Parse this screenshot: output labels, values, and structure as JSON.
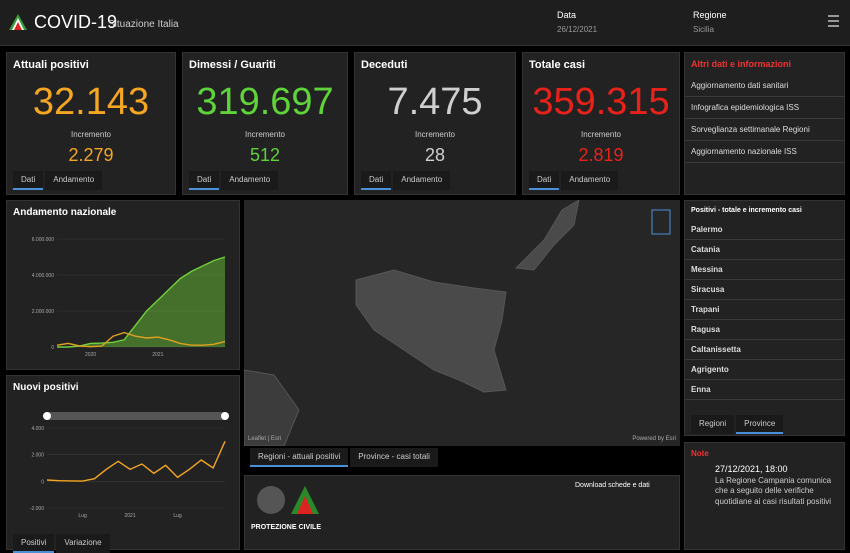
{
  "header": {
    "title": "COVID-19",
    "subtitle": "Situazione Italia",
    "date_label": "Data",
    "date": "26/12/2021",
    "region_label": "Regione",
    "region": "Sicilia"
  },
  "kpis": [
    {
      "title": "Attuali positivi",
      "value": "32.143",
      "increment_label": "Incremento",
      "increment": "2.279",
      "color": "#f5a623"
    },
    {
      "title": "Dimessi / Guariti",
      "value": "319.697",
      "increment_label": "Incremento",
      "increment": "512",
      "color": "#5fd33a"
    },
    {
      "title": "Deceduti",
      "value": "7.475",
      "increment_label": "Incremento",
      "increment": "28",
      "color": "#cfcfcf"
    },
    {
      "title": "Totale casi",
      "value": "359.315",
      "increment_label": "Incremento",
      "increment": "2.819",
      "color": "#e8221b"
    }
  ],
  "kpi_tabs": [
    "Dati",
    "Andamento"
  ],
  "links": {
    "title": "Altri dati e informazioni",
    "items": [
      "Aggiornamento dati sanitari",
      "Infografica epidemiologica ISS",
      "Sorveglianza settimanale Regioni",
      "Aggiornamento nazionale ISS"
    ]
  },
  "chart_national": {
    "type": "line",
    "title": "Andamento nazionale",
    "categories": [
      null,
      null,
      null,
      "2020",
      null,
      null,
      null,
      null,
      null,
      "2021",
      null,
      null,
      null,
      null,
      null,
      null
    ],
    "series": [
      {
        "color": "#6fd13a",
        "values": [
          0,
          0,
          50000,
          200000,
          220000,
          260000,
          400000,
          1200000,
          2000000,
          2600000,
          3200000,
          3800000,
          4200000,
          4500000,
          4800000,
          5000000
        ]
      },
      {
        "color": "#e0a020",
        "values": [
          100000,
          200000,
          60000,
          20000,
          50000,
          600000,
          800000,
          600000,
          500000,
          550000,
          400000,
          200000,
          100000,
          100000,
          150000,
          300000
        ]
      }
    ],
    "ylim": [
      0,
      6000000
    ],
    "yticks": [
      0,
      {
        "value": 2000000,
        "label": "2.000.000"
      },
      {
        "value": 4000000,
        "label": "4.000.000"
      },
      {
        "value": 6000000,
        "label": "6.000.000"
      }
    ]
  },
  "chart_new": {
    "type": "line",
    "title": "Nuovi positivi",
    "categories": [
      null,
      null,
      null,
      "Lug",
      null,
      null,
      null,
      "2021",
      null,
      null,
      null,
      "Lug",
      null,
      null,
      null,
      null
    ],
    "series": [
      {
        "color": "#f5a623",
        "values": [
          100,
          50,
          30,
          20,
          200,
          900,
          1500,
          900,
          1300,
          600,
          1200,
          300,
          900,
          1600,
          1000,
          3000
        ]
      }
    ],
    "ylim": [
      -2000,
      4000
    ],
    "yticks": [
      {
        "value": -2000,
        "label": "-2.000"
      },
      0,
      {
        "value": 2000,
        "label": "2.000"
      },
      {
        "value": 4000,
        "label": "4.000"
      }
    ],
    "tabs": [
      "Positivi",
      "Variazione"
    ]
  },
  "map": {
    "attribution_left": "Leaflet | Esri",
    "attribution_right": "Powered by Esri",
    "tabs": [
      "Regioni - attuali positivi",
      "Province - casi totali"
    ]
  },
  "provinces": {
    "title": "Positivi - totale e incremento casi",
    "items": [
      "Palermo",
      "Catania",
      "Messina",
      "Siracusa",
      "Trapani",
      "Ragusa",
      "Caltanissetta",
      "Agrigento",
      "Enna"
    ],
    "tabs": [
      "Regioni",
      "Province"
    ]
  },
  "note": {
    "title": "Note",
    "date": "27/12/2021, 18:00",
    "text": "La Regione Campania comunica che a seguito delle verifiche quotidiane ai casi risultati positivi"
  },
  "footer": {
    "org": "PROTEZIONE CIVILE",
    "downloads": "Download schede e dati"
  }
}
